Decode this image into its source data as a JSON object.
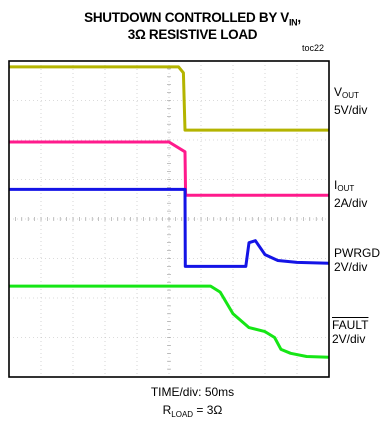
{
  "chart_data": {
    "type": "line",
    "title_line1": "SHUTDOWN CONTROLLED BY V",
    "title_line1_sub": "IN",
    "title_line1_end": ",",
    "title_line2": "3Ω RESISTIVE LOAD",
    "figure_id": "toc22",
    "time_per_div": "TIME/div: 50ms",
    "rload_label": "R",
    "rload_sub": "LOAD",
    "rload_value": " = 3Ω",
    "grid": true,
    "divisions": {
      "x": 10,
      "y": 8
    },
    "series": [
      {
        "name": "V",
        "name_sub": "OUT",
        "scale": "5V/div",
        "color": "#b4b400",
        "points": [
          [
            0,
            7.85
          ],
          [
            5.3,
            7.85
          ],
          [
            5.45,
            7.7
          ],
          [
            5.5,
            6.25
          ],
          [
            10,
            6.25
          ]
        ]
      },
      {
        "name": "I",
        "name_sub": "OUT",
        "scale": "2A/div",
        "color": "#ff1a8c",
        "points": [
          [
            0,
            5.95
          ],
          [
            5.0,
            5.95
          ],
          [
            5.5,
            5.7
          ],
          [
            5.52,
            4.6
          ],
          [
            10,
            4.6
          ]
        ]
      },
      {
        "name": "PWRGD",
        "name_sub": "",
        "scale": "2V/div",
        "color": "#1414e6",
        "points": [
          [
            0,
            4.75
          ],
          [
            5.5,
            4.75
          ],
          [
            5.51,
            2.8
          ],
          [
            7.4,
            2.8
          ],
          [
            7.5,
            3.4
          ],
          [
            7.7,
            3.45
          ],
          [
            8.0,
            3.1
          ],
          [
            8.4,
            2.95
          ],
          [
            9.0,
            2.9
          ],
          [
            10,
            2.88
          ]
        ]
      },
      {
        "name": "FAULT",
        "name_sub": "",
        "scale": "2V/div",
        "color": "#16e616",
        "overline": true,
        "points": [
          [
            0,
            2.3
          ],
          [
            6.3,
            2.3
          ],
          [
            6.6,
            2.15
          ],
          [
            7.0,
            1.6
          ],
          [
            7.5,
            1.25
          ],
          [
            8.0,
            1.15
          ],
          [
            8.3,
            1.0
          ],
          [
            8.5,
            0.7
          ],
          [
            8.8,
            0.6
          ],
          [
            9.3,
            0.52
          ],
          [
            10,
            0.5
          ]
        ]
      }
    ]
  }
}
